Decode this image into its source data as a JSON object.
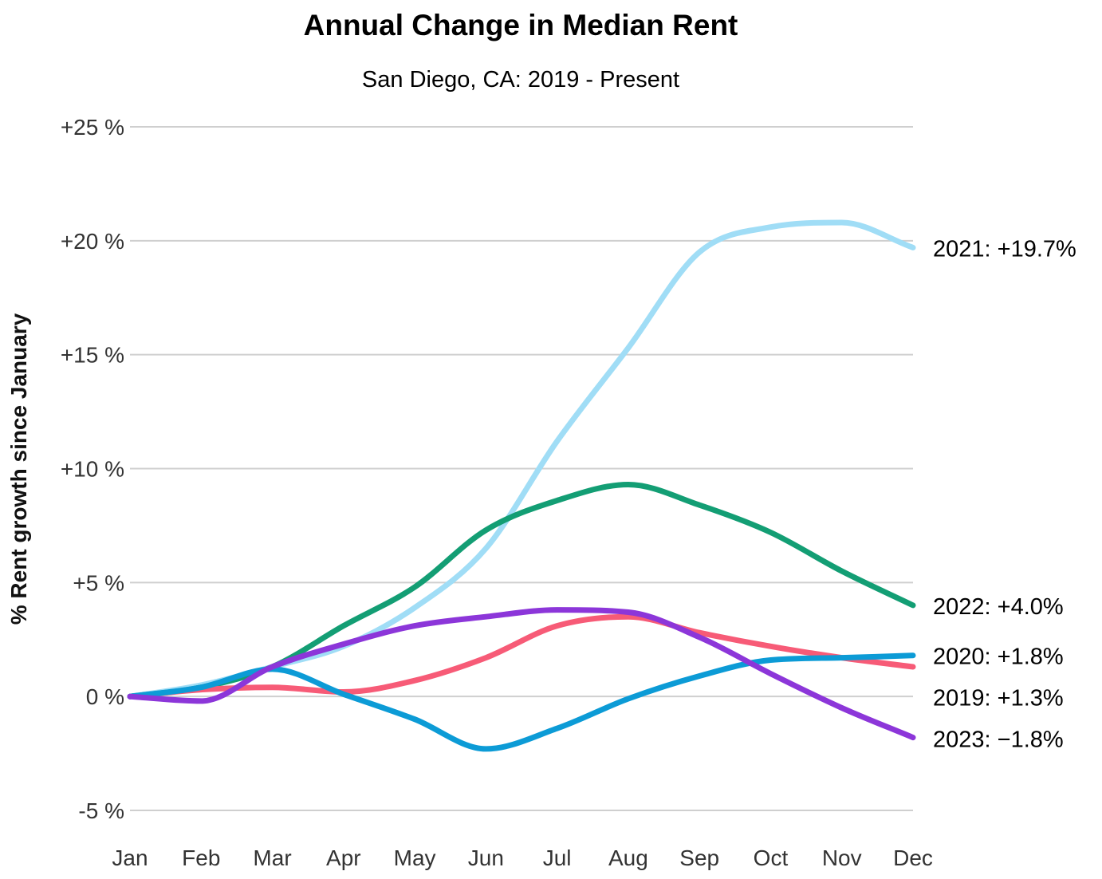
{
  "chart_data": {
    "type": "line",
    "title": "Annual Change in Median Rent",
    "subtitle": "San Diego, CA: 2019 - Present",
    "ylabel": "% Rent growth since January",
    "xlabel": "",
    "categories": [
      "Jan",
      "Feb",
      "Mar",
      "Apr",
      "May",
      "Jun",
      "Jul",
      "Aug",
      "Sep",
      "Oct",
      "Nov",
      "Dec"
    ],
    "ylim": [
      -5,
      25
    ],
    "yticks": [
      25,
      20,
      15,
      10,
      5,
      0,
      -5
    ],
    "ytick_labels": [
      "+25 %",
      "+20 %",
      "+15 %",
      "+10 %",
      "+5 %",
      "0 %",
      "-5 %"
    ],
    "grid": true,
    "legend": "end-of-line labels",
    "series": [
      {
        "name": "2021",
        "label": "2021: +19.7%",
        "color": "#a0ddf6",
        "values": [
          0,
          0.5,
          1.3,
          2.2,
          3.9,
          6.5,
          11.2,
          15.3,
          19.5,
          20.6,
          20.8,
          19.7
        ]
      },
      {
        "name": "2022",
        "label": "2022: +4.0%",
        "color": "#139e74",
        "values": [
          0,
          0.4,
          1.3,
          3.1,
          4.8,
          7.3,
          8.6,
          9.3,
          8.4,
          7.2,
          5.5,
          4.0
        ]
      },
      {
        "name": "2019",
        "label": "2019: +1.3%",
        "color": "#f75b77",
        "values": [
          0,
          0.3,
          0.4,
          0.2,
          0.7,
          1.7,
          3.1,
          3.5,
          2.8,
          2.2,
          1.7,
          1.3
        ]
      },
      {
        "name": "2020",
        "label": "2020: +1.8%",
        "color": "#0c9bd6",
        "values": [
          0,
          0.4,
          1.2,
          0.1,
          -1.0,
          -2.3,
          -1.4,
          -0.1,
          0.9,
          1.6,
          1.7,
          1.8
        ]
      },
      {
        "name": "2023",
        "label": "2023: −1.8%",
        "color": "#8c36d9",
        "values": [
          0,
          -0.2,
          1.3,
          2.3,
          3.1,
          3.5,
          3.8,
          3.7,
          2.6,
          1.0,
          -0.5,
          -1.8
        ]
      }
    ]
  }
}
